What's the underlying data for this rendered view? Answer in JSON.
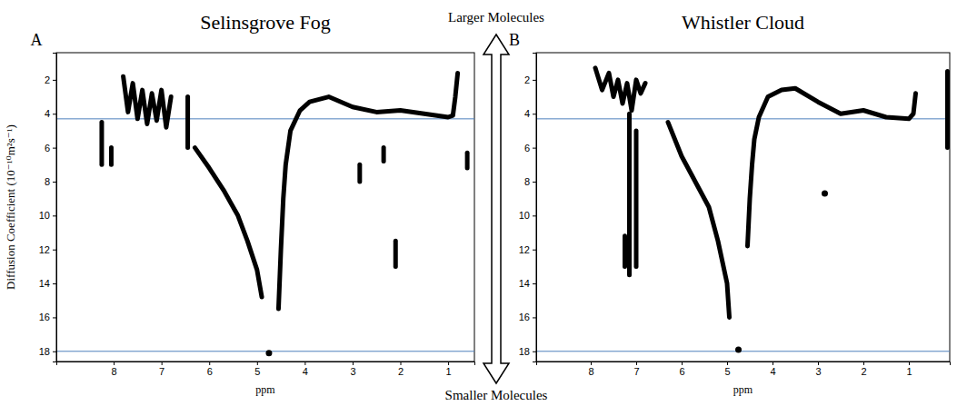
{
  "chart_data": [
    {
      "type": "line",
      "title": "Selinsgrove Fog",
      "panel_label": "A",
      "xlabel": "ppm",
      "ylabel": "Diffusion Coefficient (10⁻¹⁰m²s⁻¹)",
      "xlim": [
        9.2,
        0.45
      ],
      "ylim": [
        0.4,
        18.6
      ],
      "xticks": [
        8,
        7,
        6,
        5,
        4,
        3,
        2,
        1
      ],
      "yticks": [
        2,
        4,
        6,
        8,
        10,
        12,
        14,
        16,
        18
      ],
      "reference_lines": [
        4.3,
        18
      ],
      "color": "#000000",
      "series": [
        {
          "type": "line",
          "x": [
            7.8,
            7.7,
            7.6,
            7.5,
            7.4,
            7.3,
            7.2,
            7.1,
            7.0,
            6.9,
            6.8
          ],
          "values": [
            1.8,
            3.9,
            2.2,
            4.3,
            2.6,
            4.6,
            2.8,
            4.4,
            2.6,
            4.8,
            3.0
          ]
        },
        {
          "type": "line",
          "x": [
            6.45,
            6.45
          ],
          "values": [
            3.0,
            6.0
          ]
        },
        {
          "type": "line",
          "x": [
            6.3,
            6.0,
            5.7,
            5.4,
            5.2,
            5.0,
            4.9
          ],
          "values": [
            6.0,
            7.2,
            8.5,
            10.0,
            11.5,
            13.2,
            14.8
          ]
        },
        {
          "type": "line",
          "x": [
            4.55,
            4.5,
            4.45,
            4.4,
            4.3,
            4.1,
            3.9,
            3.5,
            3.0,
            2.5,
            2.0,
            1.5,
            1.0,
            0.9,
            0.85,
            0.8
          ],
          "values": [
            15.5,
            12.0,
            9.0,
            7.0,
            5.0,
            3.8,
            3.3,
            3.0,
            3.6,
            3.9,
            3.8,
            4.0,
            4.2,
            4.1,
            3.0,
            1.6
          ]
        },
        {
          "type": "line",
          "x": [
            8.25,
            8.25
          ],
          "values": [
            4.5,
            7.0
          ]
        },
        {
          "type": "line",
          "x": [
            8.05,
            8.05
          ],
          "values": [
            6.0,
            7.0
          ]
        },
        {
          "type": "line",
          "x": [
            2.85,
            2.85
          ],
          "values": [
            7.0,
            8.0
          ]
        },
        {
          "type": "line",
          "x": [
            2.35,
            2.35
          ],
          "values": [
            6.0,
            6.8
          ]
        },
        {
          "type": "line",
          "x": [
            2.1,
            2.1
          ],
          "values": [
            11.5,
            13.0
          ]
        },
        {
          "type": "line",
          "x": [
            0.6,
            0.6
          ],
          "values": [
            6.3,
            7.2
          ]
        },
        {
          "type": "scatter",
          "marker": "circle",
          "x": [
            4.75
          ],
          "values": [
            18.1
          ]
        }
      ]
    },
    {
      "type": "line",
      "title": "Whistler Cloud",
      "panel_label": "B",
      "xlabel": "ppm",
      "xlim": [
        9.2,
        0.1
      ],
      "ylim": [
        0.4,
        18.6
      ],
      "xticks": [
        8,
        7,
        6,
        5,
        4,
        3,
        2,
        1
      ],
      "yticks": [
        2,
        4,
        6,
        8,
        10,
        12,
        14,
        16,
        18
      ],
      "reference_lines": [
        4.3,
        18
      ],
      "color": "#000000",
      "series": [
        {
          "type": "line",
          "x": [
            7.9,
            7.75,
            7.6,
            7.5,
            7.4,
            7.3,
            7.2,
            7.1,
            7.0,
            6.9,
            6.8
          ],
          "values": [
            1.3,
            2.6,
            1.6,
            3.0,
            2.0,
            3.4,
            2.2,
            3.8,
            2.0,
            2.8,
            2.2
          ]
        },
        {
          "type": "line",
          "x": [
            7.15,
            7.15
          ],
          "values": [
            4.0,
            13.5
          ]
        },
        {
          "type": "line",
          "x": [
            7.0,
            7.0
          ],
          "values": [
            5.0,
            13.0
          ]
        },
        {
          "type": "line",
          "x": [
            7.25,
            7.25
          ],
          "values": [
            11.2,
            13.0
          ]
        },
        {
          "type": "line",
          "x": [
            6.3,
            6.0,
            5.7,
            5.4,
            5.2,
            5.0,
            4.95
          ],
          "values": [
            4.5,
            6.5,
            8.0,
            9.5,
            11.5,
            14.0,
            16.0
          ]
        },
        {
          "type": "line",
          "x": [
            4.55,
            4.5,
            4.45,
            4.4,
            4.3,
            4.1,
            3.8,
            3.5,
            3.0,
            2.5,
            2.0,
            1.5,
            1.0,
            0.9,
            0.85
          ],
          "values": [
            11.8,
            9.0,
            7.0,
            5.5,
            4.2,
            3.0,
            2.6,
            2.5,
            3.3,
            4.0,
            3.8,
            4.2,
            4.3,
            4.0,
            2.8
          ]
        },
        {
          "type": "line",
          "x": [
            0.15,
            0.15
          ],
          "values": [
            1.5,
            6.0
          ]
        },
        {
          "type": "scatter",
          "marker": "circle",
          "x": [
            2.85,
            4.75
          ],
          "values": [
            8.7,
            17.9
          ]
        }
      ]
    }
  ],
  "arrow_labels": [
    "Larger Molecules",
    "Smaller Molecules"
  ]
}
